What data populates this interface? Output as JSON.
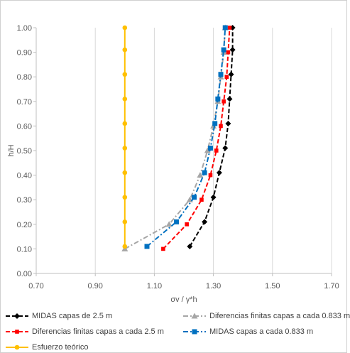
{
  "chart_data": {
    "type": "line",
    "title": "",
    "xlabel": "σv / γ*h",
    "ylabel": "h/H",
    "xlim": [
      0.7,
      1.7
    ],
    "ylim": [
      0.0,
      1.0
    ],
    "x_ticks": [
      "0.70",
      "0.90",
      "1.10",
      "1.30",
      "1.50",
      "1.70"
    ],
    "y_ticks": [
      "0.00",
      "0.10",
      "0.20",
      "0.30",
      "0.40",
      "0.50",
      "0.60",
      "0.70",
      "0.80",
      "0.90",
      "1.00"
    ],
    "grid": "vertical",
    "legend_position": "bottom",
    "series": [
      {
        "name": "MIDAS capas de 2.5 m",
        "color": "#000000",
        "line_style": "dashed",
        "marker": "diamond",
        "points": [
          [
            1.22,
            0.11
          ],
          [
            1.27,
            0.21
          ],
          [
            1.3,
            0.31
          ],
          [
            1.32,
            0.41
          ],
          [
            1.34,
            0.51
          ],
          [
            1.35,
            0.61
          ],
          [
            1.355,
            0.71
          ],
          [
            1.36,
            0.81
          ],
          [
            1.365,
            0.91
          ],
          [
            1.365,
            1.0
          ]
        ]
      },
      {
        "name": "Diferencias finitas capas a cada 0.833 m",
        "color": "#a6a6a6",
        "line_style": "dash-dot",
        "marker": "triangle",
        "points": [
          [
            1.0,
            0.1
          ],
          [
            1.15,
            0.2
          ],
          [
            1.22,
            0.3
          ],
          [
            1.255,
            0.4
          ],
          [
            1.28,
            0.5
          ],
          [
            1.3,
            0.6
          ],
          [
            1.315,
            0.7
          ],
          [
            1.325,
            0.8
          ],
          [
            1.335,
            0.9
          ],
          [
            1.34,
            1.0
          ]
        ]
      },
      {
        "name": "Diferencias finitas  capas a cada 2.5 m",
        "color": "#ff0000",
        "line_style": "dashed",
        "marker": "x",
        "points": [
          [
            1.13,
            0.1
          ],
          [
            1.21,
            0.2
          ],
          [
            1.26,
            0.3
          ],
          [
            1.29,
            0.4
          ],
          [
            1.31,
            0.5
          ],
          [
            1.325,
            0.6
          ],
          [
            1.335,
            0.7
          ],
          [
            1.345,
            0.8
          ],
          [
            1.35,
            0.9
          ],
          [
            1.355,
            1.0
          ]
        ]
      },
      {
        "name": "MIDAS capas a cada 0.833 m",
        "color": "#0070c0",
        "line_style": "dash-dot",
        "marker": "square",
        "points": [
          [
            1.075,
            0.11
          ],
          [
            1.175,
            0.21
          ],
          [
            1.235,
            0.31
          ],
          [
            1.27,
            0.41
          ],
          [
            1.29,
            0.51
          ],
          [
            1.305,
            0.61
          ],
          [
            1.315,
            0.71
          ],
          [
            1.325,
            0.81
          ],
          [
            1.335,
            0.91
          ],
          [
            1.34,
            1.0
          ]
        ]
      },
      {
        "name": "Esfuerzo teórico",
        "color": "#ffc000",
        "line_style": "solid",
        "marker": "circle",
        "points": [
          [
            1.0,
            0.11
          ],
          [
            1.0,
            0.21
          ],
          [
            1.0,
            0.31
          ],
          [
            1.0,
            0.41
          ],
          [
            1.0,
            0.51
          ],
          [
            1.0,
            0.61
          ],
          [
            1.0,
            0.71
          ],
          [
            1.0,
            0.81
          ],
          [
            1.0,
            0.91
          ],
          [
            1.0,
            1.0
          ]
        ]
      }
    ]
  }
}
